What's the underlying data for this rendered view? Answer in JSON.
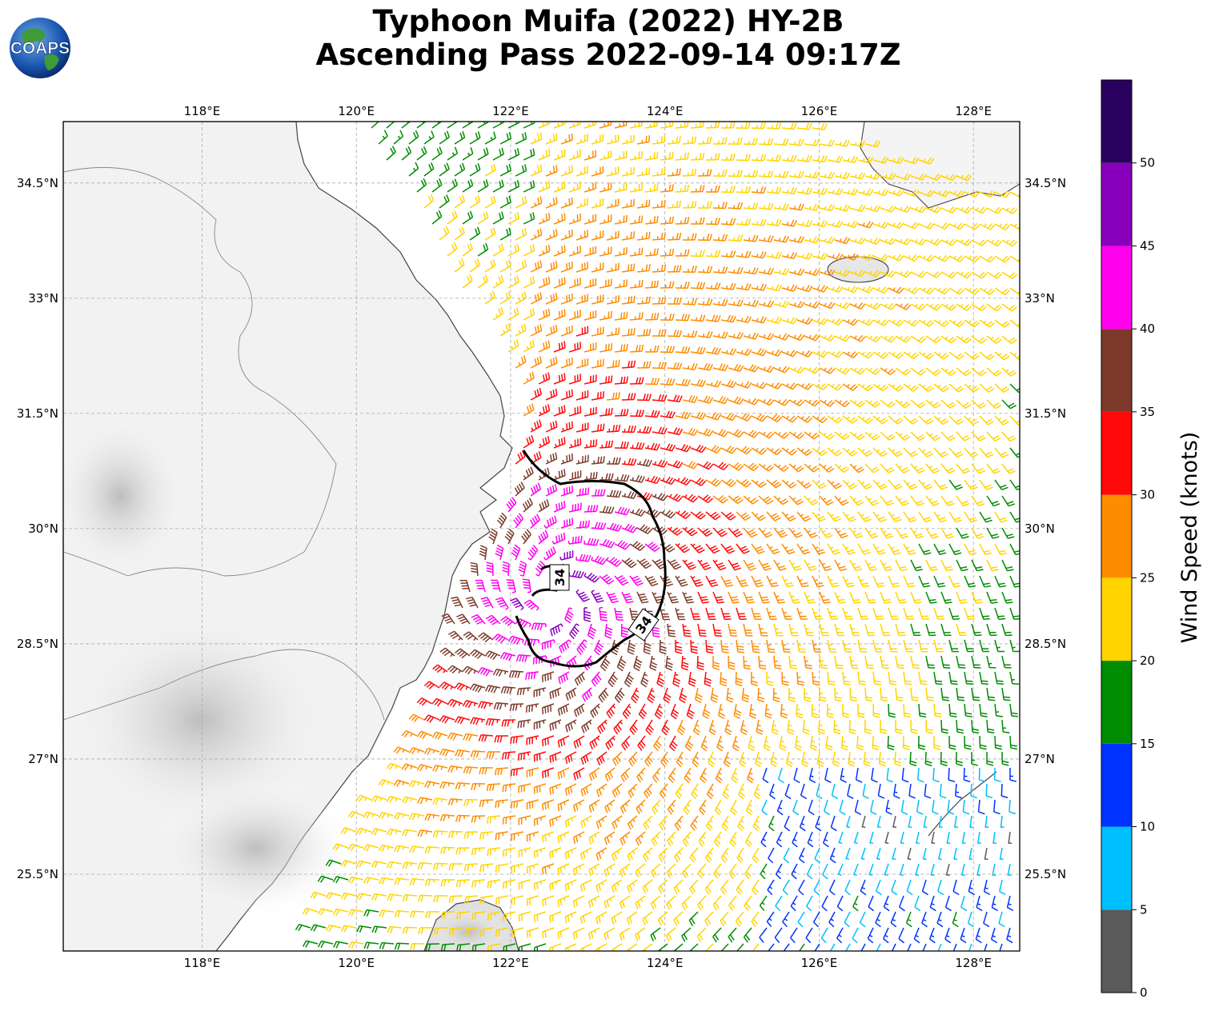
{
  "title": {
    "line1": "Typhoon Muifa (2022) HY-2B",
    "line2": "Ascending Pass 2022-09-14 09:17Z"
  },
  "logo": {
    "text": "COAPS",
    "icon": "globe-logo-icon"
  },
  "map": {
    "lon_range": [
      116.2,
      128.6
    ],
    "lat_range": [
      24.5,
      35.3
    ],
    "lon_ticks": [
      118,
      120,
      122,
      124,
      126,
      128
    ],
    "lat_ticks": [
      25.5,
      27,
      28.5,
      30,
      31.5,
      33,
      34.5
    ],
    "lon_labels": [
      "118°E",
      "120°E",
      "122°E",
      "124°E",
      "126°E",
      "128°E"
    ],
    "lat_labels": [
      "25.5°N",
      "27°N",
      "28.5°N",
      "30°N",
      "31.5°N",
      "33°N",
      "34.5°N"
    ],
    "grid": true,
    "contour_label": "34",
    "contour_label_2": "34",
    "typhoon_center": {
      "lon": 122.6,
      "lat": 29.1
    }
  },
  "colorbar": {
    "label": "Wind Speed (knots)",
    "ticks": [
      "0",
      "5",
      "10",
      "15",
      "20",
      "25",
      "30",
      "35",
      "40",
      "45",
      "50"
    ],
    "bins": [
      {
        "from": 0,
        "to": 5,
        "color": "#5a5a5a"
      },
      {
        "from": 5,
        "to": 10,
        "color": "#00bfff"
      },
      {
        "from": 10,
        "to": 15,
        "color": "#0033ff"
      },
      {
        "from": 15,
        "to": 20,
        "color": "#008c00"
      },
      {
        "from": 20,
        "to": 25,
        "color": "#ffd400"
      },
      {
        "from": 25,
        "to": 30,
        "color": "#ff8c00"
      },
      {
        "from": 30,
        "to": 35,
        "color": "#ff0a0a"
      },
      {
        "from": 35,
        "to": 40,
        "color": "#7d3a2a"
      },
      {
        "from": 40,
        "to": 45,
        "color": "#ff00ee"
      },
      {
        "from": 45,
        "to": 50,
        "color": "#8800bb"
      },
      {
        "from": 50,
        "to": 55,
        "color": "#2a0060"
      }
    ]
  }
}
